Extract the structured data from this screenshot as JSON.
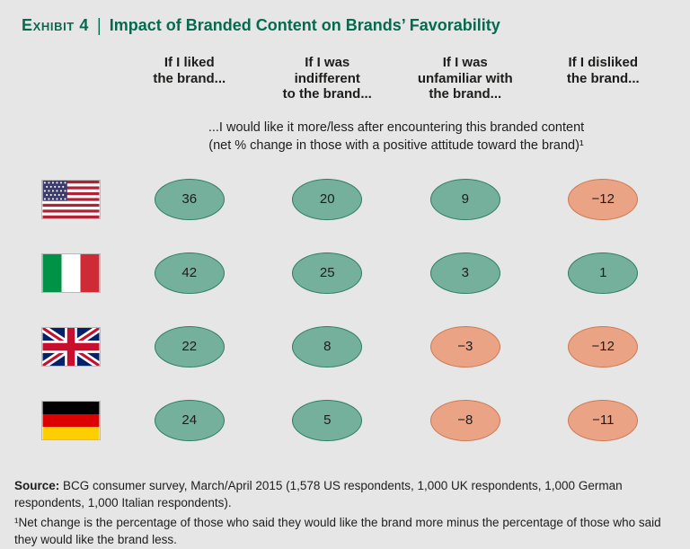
{
  "header": {
    "exhibit_label": "Exhibit 4",
    "separator": "|",
    "title": "Impact of Branded Content on Brands’ Favorability"
  },
  "chart_data": {
    "type": "table",
    "title": "Impact of Branded Content on Brands’ Favorability",
    "subtitle": "...I would like it more/less after encountering this branded content\n(net % change in those with a positive attitude toward the brand)¹",
    "columns": [
      "If I liked\nthe brand...",
      "If I was\nindifferent\nto the brand...",
      "If I was\nunfamiliar with\nthe brand...",
      "If I disliked\nthe brand..."
    ],
    "value_unit": "net % change in those with a positive attitude toward the brand",
    "rows": [
      {
        "id": "us",
        "country": "United States",
        "values": [
          36,
          20,
          9,
          -12
        ]
      },
      {
        "id": "italy",
        "country": "Italy",
        "values": [
          42,
          25,
          3,
          1
        ]
      },
      {
        "id": "uk",
        "country": "United Kingdom",
        "values": [
          22,
          8,
          -3,
          -12
        ]
      },
      {
        "id": "germany",
        "country": "Germany",
        "values": [
          24,
          5,
          -8,
          -11
        ]
      }
    ],
    "positive_color": "#74b09b",
    "negative_color": "#eaa385"
  },
  "footer": {
    "source_label": "Source:",
    "source_text": " BCG consumer survey, March/April 2015 (1,578 US respondents, 1,000 UK respondents, 1,000 German respondents, 1,000 Italian respondents).",
    "footnote": "¹Net change is the percentage of those who said they would like the brand more minus the percentage of those who said they would like the brand less."
  },
  "theme": {
    "bg": "#e6e6e7",
    "title_green": "#066a4e",
    "pos_fill": "#74b09b",
    "pos_border": "#2e7d64",
    "neg_fill": "#eaa385",
    "neg_border": "#cc7a52",
    "text_dark": "#1d1d1b"
  }
}
